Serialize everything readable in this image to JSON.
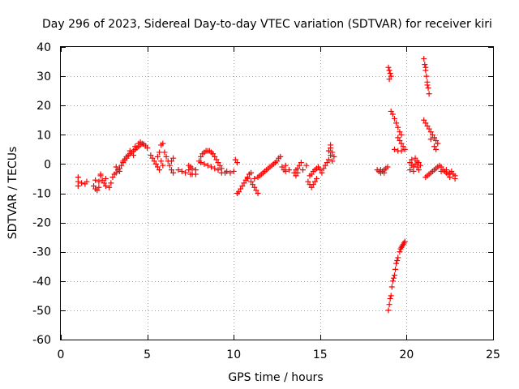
{
  "chart_data": {
    "type": "scatter",
    "title": "Day 296 of 2023, Sidereal Day-to-day VTEC variation (SDTVAR) for receiver kiri",
    "xlabel": "GPS time / hours",
    "ylabel": "SDTVAR / TECUs",
    "xlim": [
      0,
      25
    ],
    "ylim": [
      -60,
      40
    ],
    "xticks": [
      0,
      5,
      10,
      15,
      20,
      25
    ],
    "yticks": [
      -60,
      -50,
      -40,
      -30,
      -20,
      -10,
      0,
      10,
      20,
      30,
      40
    ],
    "grid": true,
    "marker": "+",
    "color": "#ff0000",
    "series": [
      {
        "name": "SDTVAR",
        "points": [
          [
            1.0,
            -4.5
          ],
          [
            1.0,
            -6.0
          ],
          [
            1.0,
            -7.5
          ],
          [
            1.2,
            -6.5
          ],
          [
            1.4,
            -6.8
          ],
          [
            1.5,
            -6.0
          ],
          [
            1.9,
            -7.5
          ],
          [
            2.0,
            -8.5
          ],
          [
            2.1,
            -9.0
          ],
          [
            2.2,
            -8.0
          ],
          [
            2.2,
            -6.0
          ],
          [
            2.3,
            -4.0
          ],
          [
            2.4,
            -5.5
          ],
          [
            2.5,
            -6.5
          ],
          [
            2.6,
            -7.5
          ],
          [
            2.8,
            -8.0
          ],
          [
            2.9,
            -6.5
          ],
          [
            2.6,
            -5.0
          ],
          [
            2.0,
            -5.5
          ],
          [
            2.3,
            -3.5
          ],
          [
            3.0,
            -4.5
          ],
          [
            3.1,
            -3.5
          ],
          [
            3.2,
            -3.0
          ],
          [
            3.3,
            -2.0
          ],
          [
            3.4,
            -1.5
          ],
          [
            3.5,
            -0.5
          ],
          [
            3.6,
            0.5
          ],
          [
            3.7,
            1.5
          ],
          [
            3.8,
            2.5
          ],
          [
            3.9,
            3.0
          ],
          [
            4.0,
            3.5
          ],
          [
            4.1,
            4.0
          ],
          [
            4.2,
            4.5
          ],
          [
            4.3,
            5.0
          ],
          [
            4.4,
            5.5
          ],
          [
            4.5,
            6.0
          ],
          [
            4.6,
            6.5
          ],
          [
            4.7,
            7.0
          ],
          [
            4.8,
            6.8
          ],
          [
            4.9,
            6.2
          ],
          [
            5.0,
            5.5
          ],
          [
            4.5,
            7.0
          ],
          [
            4.6,
            7.5
          ],
          [
            4.3,
            6.0
          ],
          [
            4.0,
            4.5
          ],
          [
            3.8,
            2.0
          ],
          [
            3.6,
            1.0
          ],
          [
            4.2,
            3.0
          ],
          [
            3.4,
            -2.5
          ],
          [
            3.2,
            -1.0
          ],
          [
            5.2,
            3.0
          ],
          [
            5.3,
            2.0
          ],
          [
            5.4,
            1.0
          ],
          [
            5.5,
            0.0
          ],
          [
            5.6,
            -1.0
          ],
          [
            5.7,
            -2.0
          ],
          [
            5.6,
            2.5
          ],
          [
            5.7,
            4.0
          ],
          [
            5.8,
            6.5
          ],
          [
            5.9,
            7.0
          ],
          [
            5.8,
            1.0
          ],
          [
            5.9,
            -0.5
          ],
          [
            6.0,
            4.0
          ],
          [
            6.1,
            2.5
          ],
          [
            6.2,
            1.0
          ],
          [
            6.3,
            -0.5
          ],
          [
            6.4,
            -2.0
          ],
          [
            6.5,
            -3.0
          ],
          [
            6.4,
            1.0
          ],
          [
            6.5,
            2.0
          ],
          [
            6.8,
            -2.0
          ],
          [
            7.0,
            -2.5
          ],
          [
            7.2,
            -3.0
          ],
          [
            7.4,
            -2.0
          ],
          [
            7.6,
            -1.5
          ],
          [
            7.8,
            -2.0
          ],
          [
            7.5,
            -3.5
          ],
          [
            7.6,
            -3.5
          ],
          [
            7.8,
            -3.5
          ],
          [
            7.4,
            -0.5
          ],
          [
            7.5,
            -1.0
          ],
          [
            8.0,
            1.0
          ],
          [
            8.1,
            2.5
          ],
          [
            8.2,
            3.5
          ],
          [
            8.3,
            4.0
          ],
          [
            8.4,
            4.5
          ],
          [
            8.5,
            4.5
          ],
          [
            8.6,
            4.5
          ],
          [
            8.7,
            4.0
          ],
          [
            8.8,
            3.5
          ],
          [
            8.9,
            2.5
          ],
          [
            9.0,
            1.5
          ],
          [
            9.1,
            0.5
          ],
          [
            9.2,
            -0.5
          ],
          [
            9.3,
            -1.5
          ],
          [
            8.1,
            0.5
          ],
          [
            8.3,
            0.0
          ],
          [
            8.5,
            -0.5
          ],
          [
            8.7,
            -1.0
          ],
          [
            8.9,
            -1.5
          ],
          [
            9.1,
            -2.0
          ],
          [
            9.3,
            -3.0
          ],
          [
            9.5,
            -3.0
          ],
          [
            9.6,
            -2.5
          ],
          [
            9.8,
            -3.0
          ],
          [
            10.0,
            -2.5
          ],
          [
            10.1,
            1.5
          ],
          [
            10.2,
            0.5
          ],
          [
            10.2,
            -10.0
          ],
          [
            10.3,
            -9.5
          ],
          [
            10.4,
            -8.5
          ],
          [
            10.5,
            -7.5
          ],
          [
            10.6,
            -6.5
          ],
          [
            10.7,
            -5.5
          ],
          [
            10.8,
            -4.5
          ],
          [
            10.9,
            -3.5
          ],
          [
            11.0,
            -3.0
          ],
          [
            10.8,
            -5.0
          ],
          [
            11.0,
            -6.0
          ],
          [
            11.1,
            -7.0
          ],
          [
            11.2,
            -8.0
          ],
          [
            11.3,
            -9.0
          ],
          [
            11.4,
            -10.0
          ],
          [
            11.2,
            -5.0
          ],
          [
            11.4,
            -4.5
          ],
          [
            11.5,
            -4.0
          ],
          [
            11.6,
            -3.5
          ],
          [
            11.7,
            -3.0
          ],
          [
            11.8,
            -2.5
          ],
          [
            11.9,
            -2.0
          ],
          [
            12.0,
            -1.5
          ],
          [
            12.1,
            -1.0
          ],
          [
            12.2,
            -0.5
          ],
          [
            12.3,
            0.0
          ],
          [
            12.4,
            0.5
          ],
          [
            12.5,
            1.0
          ],
          [
            12.6,
            2.0
          ],
          [
            12.7,
            2.5
          ],
          [
            12.8,
            -1.0
          ],
          [
            12.9,
            -2.0
          ],
          [
            13.0,
            -2.5
          ],
          [
            13.2,
            -2.0
          ],
          [
            13.0,
            -0.5
          ],
          [
            13.5,
            -3.0
          ],
          [
            13.6,
            -2.0
          ],
          [
            13.7,
            -1.5
          ],
          [
            13.8,
            -0.5
          ],
          [
            13.9,
            0.5
          ],
          [
            13.6,
            -4.0
          ],
          [
            13.7,
            -3.0
          ],
          [
            14.0,
            -2.0
          ],
          [
            14.2,
            -0.5
          ],
          [
            14.3,
            -6.0
          ],
          [
            14.4,
            -7.0
          ],
          [
            14.5,
            -8.0
          ],
          [
            14.6,
            -7.0
          ],
          [
            14.7,
            -6.0
          ],
          [
            14.8,
            -5.0
          ],
          [
            14.4,
            -4.0
          ],
          [
            14.5,
            -3.5
          ],
          [
            14.6,
            -2.5
          ],
          [
            14.7,
            -2.0
          ],
          [
            14.8,
            -1.5
          ],
          [
            14.9,
            -1.0
          ],
          [
            15.0,
            -2.0
          ],
          [
            15.1,
            -3.0
          ],
          [
            15.2,
            -1.5
          ],
          [
            15.3,
            -0.5
          ],
          [
            15.4,
            0.5
          ],
          [
            15.5,
            1.5
          ],
          [
            15.6,
            3.0
          ],
          [
            15.5,
            4.5
          ],
          [
            15.6,
            5.5
          ],
          [
            15.6,
            6.5
          ],
          [
            15.7,
            4.0
          ],
          [
            15.8,
            2.5
          ],
          [
            15.7,
            1.0
          ],
          [
            18.3,
            -2.0
          ],
          [
            18.4,
            -2.5
          ],
          [
            18.5,
            -3.0
          ],
          [
            18.6,
            -2.5
          ],
          [
            18.7,
            -2.0
          ],
          [
            18.8,
            -1.5
          ],
          [
            18.9,
            -1.0
          ],
          [
            18.5,
            -2.0
          ],
          [
            18.7,
            -3.0
          ],
          [
            18.95,
            33.0
          ],
          [
            19.0,
            32.0
          ],
          [
            19.05,
            31.0
          ],
          [
            19.1,
            30.0
          ],
          [
            19.0,
            29.0
          ],
          [
            19.1,
            18.0
          ],
          [
            19.2,
            17.0
          ],
          [
            19.3,
            15.5
          ],
          [
            19.4,
            14.0
          ],
          [
            19.5,
            12.5
          ],
          [
            19.6,
            11.0
          ],
          [
            19.7,
            10.0
          ],
          [
            19.5,
            9.0
          ],
          [
            19.6,
            8.0
          ],
          [
            19.7,
            7.0
          ],
          [
            19.8,
            6.0
          ],
          [
            19.9,
            5.0
          ],
          [
            19.3,
            5.0
          ],
          [
            19.5,
            4.5
          ],
          [
            19.7,
            4.5
          ],
          [
            18.95,
            -50.0
          ],
          [
            19.0,
            -48.0
          ],
          [
            19.1,
            -45.0
          ],
          [
            19.15,
            -42.0
          ],
          [
            19.2,
            -40.0
          ],
          [
            19.3,
            -38.0
          ],
          [
            19.35,
            -36.0
          ],
          [
            19.4,
            -34.0
          ],
          [
            19.5,
            -32.0
          ],
          [
            19.6,
            -30.0
          ],
          [
            19.7,
            -28.5
          ],
          [
            19.8,
            -27.5
          ],
          [
            19.9,
            -26.5
          ],
          [
            19.05,
            -46.0
          ],
          [
            19.25,
            -39.0
          ],
          [
            19.45,
            -33.0
          ],
          [
            19.65,
            -29.0
          ],
          [
            19.75,
            -28.0
          ],
          [
            19.85,
            -27.0
          ],
          [
            20.2,
            0.5
          ],
          [
            20.3,
            -0.5
          ],
          [
            20.4,
            -1.0
          ],
          [
            20.5,
            0.0
          ],
          [
            20.6,
            1.0
          ],
          [
            20.7,
            0.5
          ],
          [
            20.8,
            -0.5
          ],
          [
            20.3,
            1.5
          ],
          [
            20.5,
            2.0
          ],
          [
            20.6,
            -1.0
          ],
          [
            20.2,
            -2.0
          ],
          [
            20.4,
            -2.5
          ],
          [
            20.7,
            -2.0
          ],
          [
            21.0,
            36.0
          ],
          [
            21.05,
            34.0
          ],
          [
            21.1,
            32.0
          ],
          [
            21.15,
            30.0
          ],
          [
            21.2,
            28.0
          ],
          [
            21.25,
            26.0
          ],
          [
            21.3,
            24.0
          ],
          [
            21.1,
            33.0
          ],
          [
            21.2,
            27.0
          ],
          [
            21.0,
            15.0
          ],
          [
            21.1,
            14.0
          ],
          [
            21.2,
            13.0
          ],
          [
            21.3,
            12.0
          ],
          [
            21.4,
            11.0
          ],
          [
            21.5,
            10.0
          ],
          [
            21.6,
            9.0
          ],
          [
            21.7,
            8.0
          ],
          [
            21.8,
            7.0
          ],
          [
            21.4,
            8.5
          ],
          [
            21.6,
            6.0
          ],
          [
            21.7,
            5.0
          ],
          [
            21.1,
            -4.5
          ],
          [
            21.2,
            -4.0
          ],
          [
            21.3,
            -3.5
          ],
          [
            21.4,
            -3.0
          ],
          [
            21.5,
            -2.5
          ],
          [
            21.6,
            -2.0
          ],
          [
            21.7,
            -1.5
          ],
          [
            21.8,
            -1.0
          ],
          [
            21.9,
            -0.5
          ],
          [
            22.0,
            -1.0
          ],
          [
            22.1,
            -2.0
          ],
          [
            22.2,
            -2.5
          ],
          [
            22.3,
            -3.0
          ],
          [
            22.4,
            -3.5
          ],
          [
            22.5,
            -3.0
          ],
          [
            22.6,
            -2.5
          ],
          [
            22.7,
            -3.5
          ],
          [
            22.8,
            -4.0
          ],
          [
            22.8,
            -5.0
          ],
          [
            22.5,
            -4.5
          ],
          [
            22.0,
            -2.5
          ],
          [
            22.3,
            -2.0
          ]
        ]
      }
    ]
  }
}
